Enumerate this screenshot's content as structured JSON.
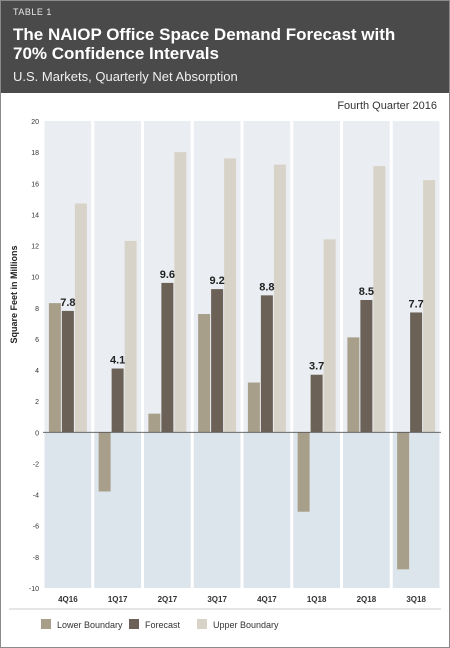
{
  "header": {
    "table_label": "TABLE 1",
    "title": "The NAIOP Office Space Demand Forecast with 70% Confidence Intervals",
    "subtitle": "U.S. Markets, Quarterly Net Absorption",
    "quarter_note": "Fourth Quarter 2016"
  },
  "colors": {
    "header_bg": "#4a4a4a",
    "lower_boundary": "#a89f8a",
    "forecast": "#6b6157",
    "upper_boundary": "#d8d3c8",
    "plot_bg": "#eaeef2",
    "negative_bg": "#dde5ec"
  },
  "chart_data": {
    "type": "bar",
    "categories": [
      "4Q16",
      "1Q17",
      "2Q17",
      "3Q17",
      "4Q17",
      "1Q18",
      "2Q18",
      "3Q18"
    ],
    "series": [
      {
        "name": "Lower Boundary",
        "values": [
          8.3,
          -3.8,
          1.2,
          7.6,
          3.2,
          -5.1,
          6.1,
          -8.8
        ]
      },
      {
        "name": "Forecast",
        "values": [
          7.8,
          4.1,
          9.6,
          9.2,
          8.8,
          3.7,
          8.5,
          7.7
        ]
      },
      {
        "name": "Upper Boundary",
        "values": [
          14.7,
          12.3,
          18.0,
          17.6,
          17.2,
          12.4,
          17.1,
          16.2
        ]
      }
    ],
    "data_labels": [
      "7.8",
      "4.1",
      "9.6",
      "9.2",
      "8.8",
      "3.7",
      "8.5",
      "7.7"
    ],
    "ylabel": "Square Feet in Millions",
    "ylim": [
      -10,
      20
    ],
    "yticks": [
      20,
      18,
      16,
      14,
      12,
      10,
      8,
      6,
      4,
      2,
      0,
      -2,
      -4,
      -6,
      -8,
      -10
    ],
    "ytick_labels": [
      "20",
      "18",
      "16",
      "14",
      "12",
      "10",
      "8",
      "6",
      "4",
      "2",
      "0",
      "-2",
      "-4",
      "-6",
      "-8",
      "-10"
    ],
    "legend_position": "bottom",
    "grid": false
  }
}
